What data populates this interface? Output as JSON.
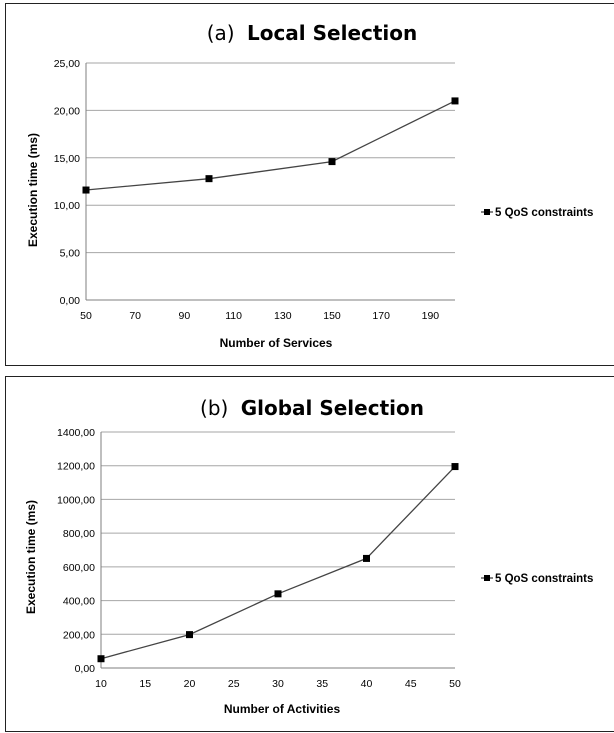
{
  "chart_data": [
    {
      "type": "line",
      "title_prefix": "(a)",
      "title": "Local Selection",
      "xlabel": "Number of Services",
      "ylabel": "Execution time (ms)",
      "xticks": [
        "50",
        "70",
        "90",
        "110",
        "130",
        "150",
        "170",
        "190"
      ],
      "xlim": [
        50,
        200
      ],
      "yticks": [
        "0,00",
        "5,00",
        "10,00",
        "15,00",
        "20,00",
        "25,00"
      ],
      "ylim": [
        0,
        25
      ],
      "grid": true,
      "legend_position": "right",
      "series": [
        {
          "name": "5 QoS constraints",
          "x": [
            50,
            100,
            150,
            200
          ],
          "y": [
            11.6,
            12.8,
            14.6,
            21.0
          ]
        }
      ]
    },
    {
      "type": "line",
      "title_prefix": "(b)",
      "title": "Global Selection",
      "xlabel": "Number of Activities",
      "ylabel": "Execution time (ms)",
      "xticks": [
        "10",
        "15",
        "20",
        "25",
        "30",
        "35",
        "40",
        "45",
        "50"
      ],
      "xlim": [
        10,
        50
      ],
      "yticks": [
        "0,00",
        "200,00",
        "400,00",
        "600,00",
        "800,00",
        "1000,00",
        "1200,00",
        "1400,00"
      ],
      "ylim": [
        0,
        1400
      ],
      "grid": true,
      "legend_position": "right",
      "series": [
        {
          "name": "5 QoS constraints",
          "x": [
            10,
            20,
            30,
            40,
            50
          ],
          "y": [
            55,
            198,
            440,
            650,
            1195
          ]
        }
      ]
    }
  ]
}
